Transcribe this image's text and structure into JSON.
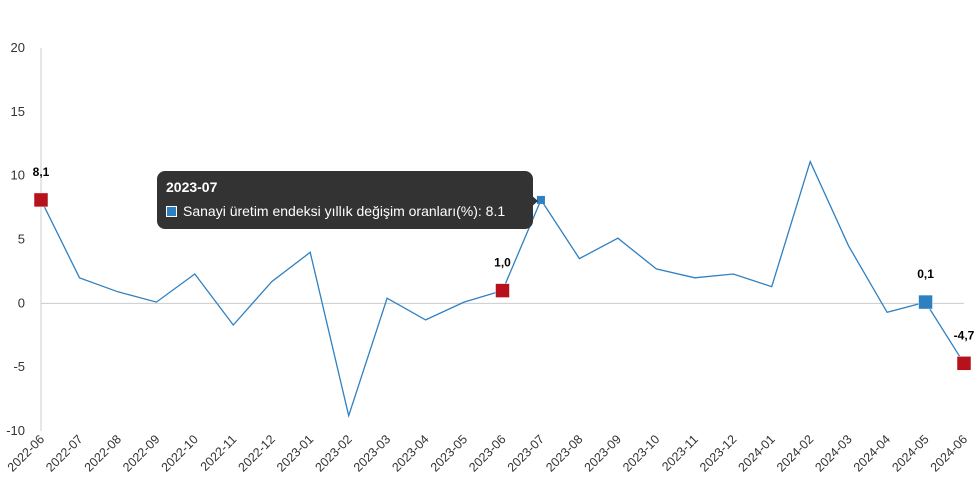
{
  "chart_data": {
    "type": "line",
    "x": [
      "2022-06",
      "2022-07",
      "2022-08",
      "2022-09",
      "2022-10",
      "2022-11",
      "2022-12",
      "2023-01",
      "2023-02",
      "2023-03",
      "2023-04",
      "2023-05",
      "2023-06",
      "2023-07",
      "2023-08",
      "2023-09",
      "2023-10",
      "2023-11",
      "2023-12",
      "2024-01",
      "2024-02",
      "2024-03",
      "2024-04",
      "2024-05",
      "2024-06"
    ],
    "series": [
      {
        "name": "Sanayi üretim endeksi yıllık değişim oranları(%)",
        "values": [
          8.1,
          2.0,
          0.9,
          0.1,
          2.3,
          -1.7,
          1.7,
          4.0,
          -8.8,
          0.4,
          -1.3,
          0.1,
          1.0,
          8.1,
          3.5,
          5.1,
          2.7,
          2.0,
          2.3,
          1.3,
          11.1,
          4.5,
          -0.7,
          0.1,
          -4.7
        ]
      }
    ],
    "ylim": [
      -10,
      20
    ],
    "yticks": [
      20,
      15,
      10,
      5,
      0,
      -5,
      -10
    ],
    "grid": false,
    "colors": {
      "line": "#2f80c1",
      "highlight_marker": "#b5121b",
      "active_marker": "#2f80c1"
    },
    "highlighted_points": [
      {
        "x": "2022-06",
        "label": "8,1",
        "marker": "red"
      },
      {
        "x": "2023-06",
        "label": "1,0",
        "marker": "red"
      },
      {
        "x": "2024-05",
        "label": "0,1",
        "marker": "blue"
      },
      {
        "x": "2024-06",
        "label": "-4,7",
        "marker": "red"
      }
    ],
    "tooltip": {
      "title": "2023-07",
      "text": "Sanayi üretim endeksi yıllık değişim oranları(%): 8.1"
    }
  }
}
